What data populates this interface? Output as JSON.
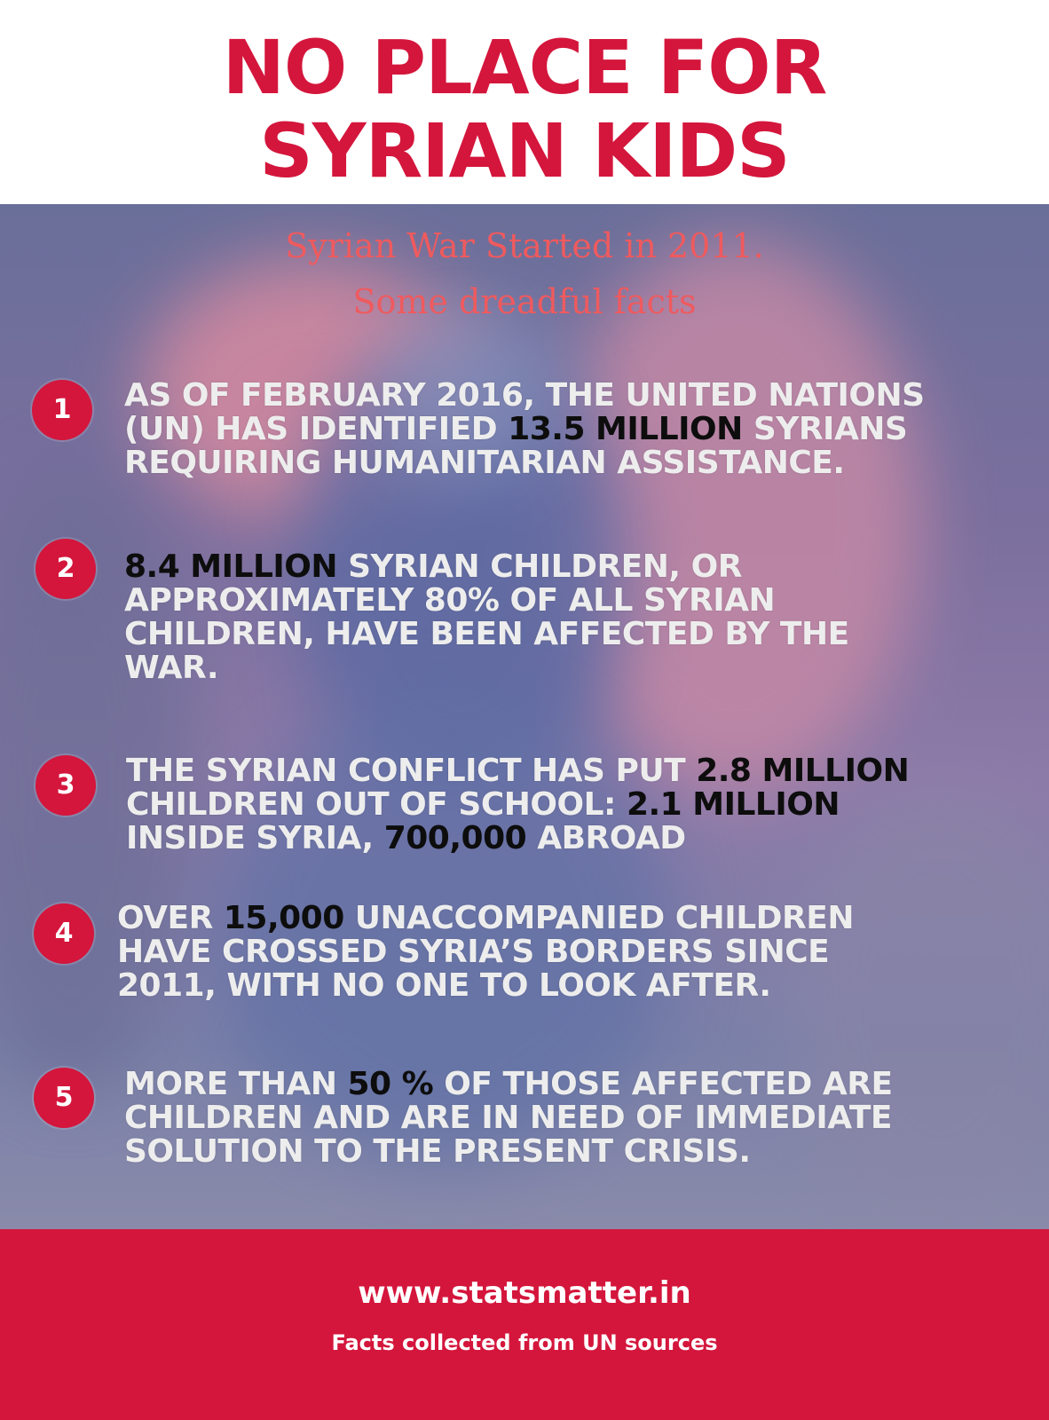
{
  "title": {
    "line1": "NO PLACE FOR",
    "line2": "SYRIAN KIDS"
  },
  "subtitle": {
    "line1": "Syrian War Started in 2011.",
    "line2": "Some dreadful facts"
  },
  "facts": [
    {
      "number": "1",
      "lines": [
        [
          "AS OF FEBRUARY 2016, THE UNITED NATIONS"
        ],
        [
          "(UN) HAS IDENTIFIED ",
          "13.5 MILLION",
          " SYRIANS"
        ],
        [
          "REQUIRING HUMANITARIAN ASSISTANCE."
        ]
      ]
    },
    {
      "number": "2",
      "lines": [
        [
          "",
          "8.4 MILLION",
          " SYRIAN CHILDREN, OR"
        ],
        [
          "APPROXIMATELY 80% OF ALL SYRIAN"
        ],
        [
          "CHILDREN, HAVE BEEN AFFECTED BY THE"
        ],
        [
          "WAR."
        ]
      ]
    },
    {
      "number": "3",
      "lines": [
        [
          "THE SYRIAN CONFLICT HAS PUT ",
          "2.8 MILLION",
          ""
        ],
        [
          "CHILDREN OUT OF SCHOOL: ",
          "2.1 MILLION",
          ""
        ],
        [
          "INSIDE SYRIA, ",
          "700,000",
          " ABROAD"
        ]
      ]
    },
    {
      "number": "4",
      "lines": [
        [
          "OVER ",
          "15,000",
          " UNACCOMPANIED CHILDREN"
        ],
        [
          "HAVE CROSSED SYRIA’S BORDERS SINCE"
        ],
        [
          "2011, WITH NO ONE TO LOOK AFTER."
        ]
      ]
    },
    {
      "number": "5",
      "lines": [
        [
          "MORE THAN ",
          "50 %",
          " OF THOSE AFFECTED ARE"
        ],
        [
          "CHILDREN AND ARE IN NEED OF IMMEDIATE"
        ],
        [
          "SOLUTION TO THE PRESENT CRISIS."
        ]
      ]
    }
  ],
  "footer": {
    "website": "www.statsmatter.in",
    "source_note": "Facts collected from UN sources"
  },
  "colors": {
    "accent": "#d4163c",
    "subtitle": "#ef5a5e",
    "highlight": "#0d0d0d",
    "fact_text": "#ededed"
  }
}
